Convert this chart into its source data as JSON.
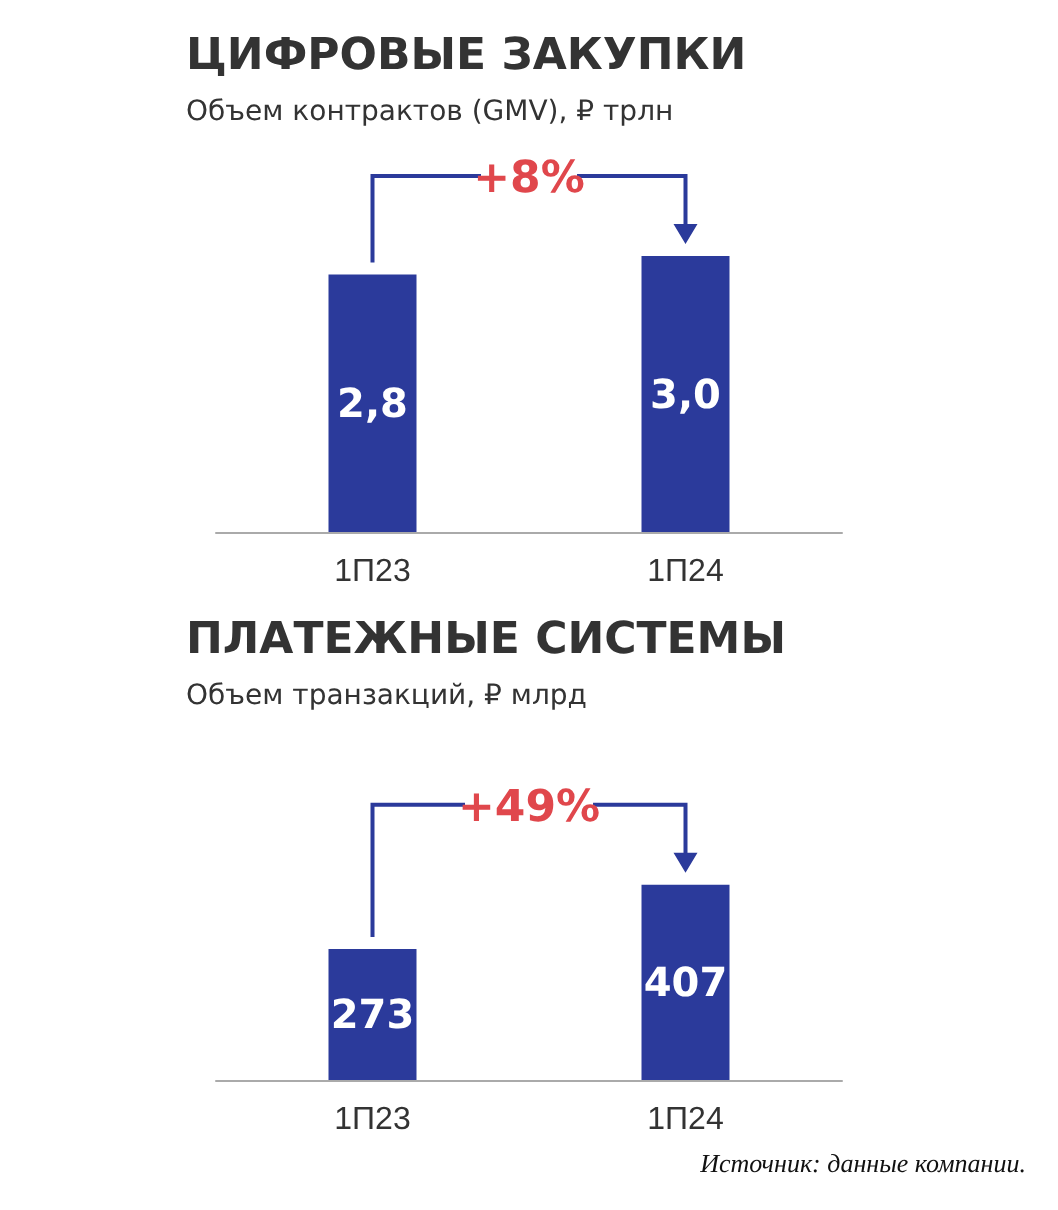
{
  "chart_data": [
    {
      "type": "bar",
      "title": "ЦИФРОВЫЕ ЗАКУПКИ",
      "subtitle": "Объем контрактов (GMV), ₽ трлн",
      "categories": [
        "1П23",
        "1П24"
      ],
      "values": [
        2.8,
        3.0
      ],
      "value_labels": [
        "2,8",
        "3,0"
      ],
      "color": "#2b3a9b",
      "annotations": [
        "+8%"
      ]
    },
    {
      "type": "bar",
      "title": "ПЛАТЕЖНЫЕ СИСТЕМЫ",
      "subtitle": "Объем транзакций, ₽ млрд",
      "categories": [
        "1П23",
        "1П24"
      ],
      "values": [
        273,
        407
      ],
      "data_labels": true,
      "color": "#2b3a9b",
      "annotations": [
        "+49%",
        "Источник: данные компании."
      ]
    }
  ]
}
